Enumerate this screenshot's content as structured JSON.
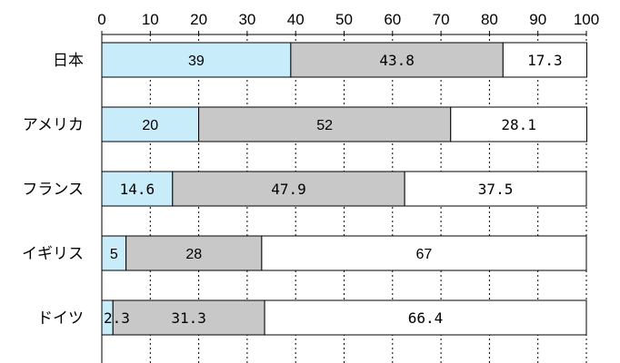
{
  "chart_data": {
    "type": "bar",
    "orientation": "horizontal",
    "stacked": true,
    "percent": true,
    "categories": [
      "日本",
      "アメリカ",
      "フランス",
      "イギリス",
      "ドイツ"
    ],
    "series": [
      {
        "values": [
          39,
          20,
          14.6,
          5,
          2.3
        ],
        "color": "#c9ecfa"
      },
      {
        "values": [
          43.8,
          52,
          47.9,
          28,
          31.3
        ],
        "color": "#c8c8c8"
      },
      {
        "values": [
          17.3,
          28.1,
          37.5,
          67,
          66.4
        ],
        "color": "#ffffff"
      }
    ],
    "labels": [
      [
        "39",
        "43.8",
        "17.3"
      ],
      [
        "20",
        "52",
        "28.1"
      ],
      [
        "14.6",
        "47.9",
        "37.5"
      ],
      [
        "5",
        "28",
        "67"
      ],
      [
        "2.3",
        "31.3",
        "66.4"
      ]
    ],
    "xlim": [
      0,
      100
    ],
    "xticks": [
      "0",
      "10",
      "20",
      "30",
      "40",
      "50",
      "60",
      "70",
      "80",
      "90",
      "100"
    ],
    "grid": "vertical-dotted",
    "title": "",
    "xlabel": "",
    "ylabel": ""
  }
}
